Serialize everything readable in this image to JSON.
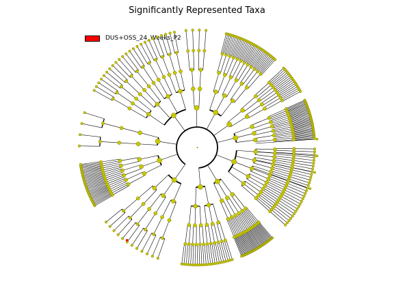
{
  "title": "Significantly Represented Taxa",
  "legend": {
    "label": "DUS+OSS_24_Weeks_P2",
    "color": "#ff0000"
  },
  "colors": {
    "node_fill": "#c8c800",
    "node_stroke": "#7a7a00",
    "edge": "#000000",
    "highlight": "#ff0000"
  },
  "tree": {
    "levels": 6,
    "clades": [
      {
        "span": [
          108,
          142
        ],
        "c": [
          3,
          2,
          1,
          2
        ]
      },
      {
        "span": [
          150,
          172
        ],
        "c": [
          3,
          2
        ]
      },
      {
        "span": [
          178,
          200
        ],
        "c": [
          2,
          1,
          1
        ]
      },
      {
        "span": [
          208,
          260
        ],
        "c": [
          4,
          3,
          1,
          2
        ]
      },
      {
        "span": [
          263,
          276
        ],
        "c": [
          2,
          1
        ]
      },
      {
        "span": [
          284,
          312
        ],
        "c": [
          3,
          2,
          2
        ]
      },
      {
        "span": [
          317,
          332
        ],
        "c": [
          2,
          2
        ]
      },
      {
        "span": [
          336,
          356
        ],
        "c": [
          3,
          2
        ]
      },
      {
        "span": [
          360,
          402
        ],
        "c": [
          5,
          3,
          2,
          1
        ]
      },
      {
        "span": [
          410,
          428
        ],
        "c": [
          3,
          2
        ]
      },
      {
        "span": [
          432,
          458
        ],
        "c": [
          2,
          3,
          2
        ]
      }
    ]
  }
}
